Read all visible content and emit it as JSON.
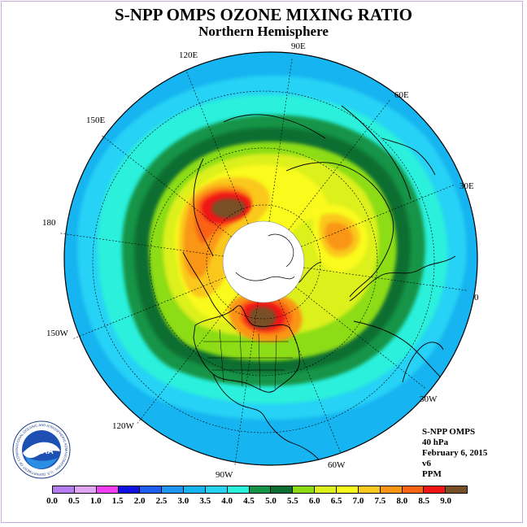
{
  "title": "S-NPP OMPS OZONE MIXING RATIO",
  "subtitle": "Northern Hemisphere",
  "longitude_labels": [
    "90E",
    "60E",
    "30E",
    "0",
    "30W",
    "60W",
    "90W",
    "120W",
    "150W",
    "180",
    "150E",
    "120E"
  ],
  "info": {
    "instrument": "S-NPP OMPS",
    "pressure": "40 hPa",
    "date": "February 6, 2015",
    "version": "v6",
    "units": "PPM"
  },
  "colorbar": {
    "labels": [
      "0.0",
      "0.5",
      "1.0",
      "1.5",
      "2.0",
      "2.5",
      "3.0",
      "3.5",
      "4.0",
      "4.5",
      "5.0",
      "5.5",
      "6.0",
      "6.5",
      "7.0",
      "7.5",
      "8.0",
      "8.5",
      "9.0"
    ],
    "colors": [
      "#b47cf0",
      "#e0a6f5",
      "#f23ef2",
      "#1010e0",
      "#1e5ff0",
      "#1e96f5",
      "#16b4f0",
      "#28d2f5",
      "#2af0dc",
      "#169446",
      "#0c6e30",
      "#8cdc14",
      "#dcf01e",
      "#fafa1e",
      "#fac81e",
      "#fa9614",
      "#fa6414",
      "#f01414",
      "#785028"
    ]
  },
  "logo": {
    "text": "NOAA",
    "ring_text": "NATIONAL OCEANIC AND ATMOSPHERIC ADMINISTRATION · U.S. DEPARTMENT OF COMMERCE"
  },
  "icons": {
    "map": "polar-stereographic-map",
    "logo": "noaa-seal-icon"
  }
}
